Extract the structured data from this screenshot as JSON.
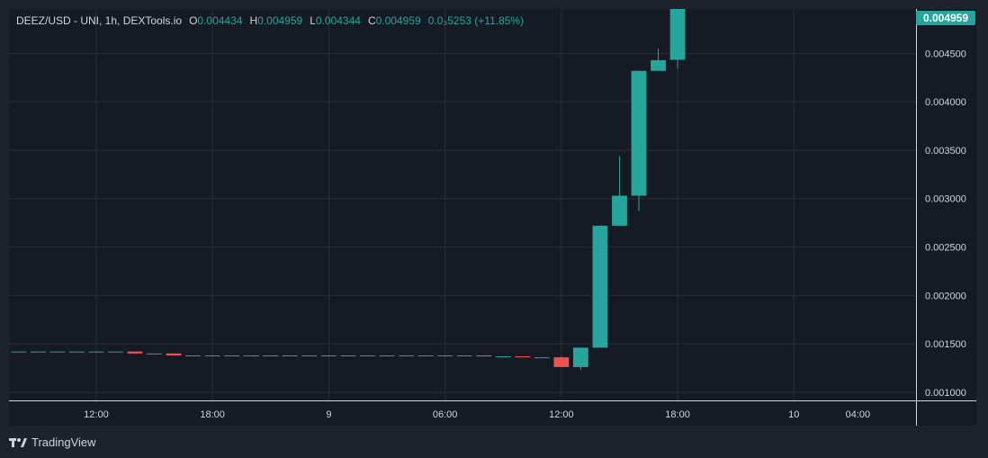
{
  "legend": {
    "symbol": "DEEZ/USD - UNI, 1h, DEXTools.io",
    "open_label": "O",
    "open": "0.004434",
    "high_label": "H",
    "high": "0.004959",
    "low_label": "L",
    "low": "0.004344",
    "close_label": "C",
    "close": "0.004959",
    "change": "0.0₃5253 (+11.85%)"
  },
  "last_price_label": "0.004959",
  "footer": {
    "brand": "TradingView"
  },
  "colors": {
    "up": "#26a69a",
    "down": "#ef5350",
    "background": "#161a25",
    "grid": "#2a2e39",
    "text": "#d1d4dc"
  },
  "chart_data": {
    "type": "candlestick",
    "y_axis": {
      "ticks": [
        0.0045,
        0.004,
        0.0035,
        0.003,
        0.0025,
        0.002,
        0.0015,
        0.001
      ],
      "tick_labels": [
        "0.004500",
        "0.004000",
        "0.003500",
        "0.003000",
        "0.002500",
        "0.002000",
        "0.001500",
        "0.001000"
      ],
      "range": [
        0.000915,
        0.004959
      ]
    },
    "x_axis": {
      "tick_labels": [
        "12:00",
        "18:00",
        "9",
        "06:00",
        "12:00",
        "18:00",
        "10",
        "04:00"
      ],
      "tick_positions": [
        4,
        10,
        16,
        22,
        28,
        34,
        40,
        43.3
      ]
    },
    "x_range": [
      -0.5,
      46.3
    ],
    "candles": [
      {
        "i": 0,
        "o": 0.00142,
        "h": 0.00142,
        "l": 0.00142,
        "c": 0.00142
      },
      {
        "i": 1,
        "o": 0.00142,
        "h": 0.00142,
        "l": 0.00142,
        "c": 0.00142
      },
      {
        "i": 2,
        "o": 0.00142,
        "h": 0.00142,
        "l": 0.00142,
        "c": 0.00142
      },
      {
        "i": 3,
        "o": 0.00142,
        "h": 0.00142,
        "l": 0.00142,
        "c": 0.00142
      },
      {
        "i": 4,
        "o": 0.00142,
        "h": 0.00142,
        "l": 0.00142,
        "c": 0.00142
      },
      {
        "i": 5,
        "o": 0.00142,
        "h": 0.00142,
        "l": 0.00142,
        "c": 0.00142
      },
      {
        "i": 6,
        "o": 0.00142,
        "h": 0.00142,
        "l": 0.0014,
        "c": 0.0014
      },
      {
        "i": 7,
        "o": 0.0014,
        "h": 0.0014,
        "l": 0.0014,
        "c": 0.0014
      },
      {
        "i": 8,
        "o": 0.0014,
        "h": 0.0014,
        "l": 0.00138,
        "c": 0.00138
      },
      {
        "i": 9,
        "o": 0.00138,
        "h": 0.00138,
        "l": 0.00138,
        "c": 0.00138
      },
      {
        "i": 10,
        "o": 0.00138,
        "h": 0.00138,
        "l": 0.00138,
        "c": 0.00138
      },
      {
        "i": 11,
        "o": 0.00138,
        "h": 0.00138,
        "l": 0.00138,
        "c": 0.00138
      },
      {
        "i": 12,
        "o": 0.00138,
        "h": 0.00138,
        "l": 0.00138,
        "c": 0.00138
      },
      {
        "i": 13,
        "o": 0.00138,
        "h": 0.00138,
        "l": 0.00138,
        "c": 0.00138
      },
      {
        "i": 14,
        "o": 0.00138,
        "h": 0.00138,
        "l": 0.00138,
        "c": 0.00138
      },
      {
        "i": 15,
        "o": 0.00138,
        "h": 0.00138,
        "l": 0.00138,
        "c": 0.00138
      },
      {
        "i": 16,
        "o": 0.00138,
        "h": 0.00138,
        "l": 0.00138,
        "c": 0.00138
      },
      {
        "i": 17,
        "o": 0.00138,
        "h": 0.00138,
        "l": 0.00138,
        "c": 0.00138
      },
      {
        "i": 18,
        "o": 0.00138,
        "h": 0.00138,
        "l": 0.00138,
        "c": 0.00138
      },
      {
        "i": 19,
        "o": 0.00138,
        "h": 0.00138,
        "l": 0.00138,
        "c": 0.00138
      },
      {
        "i": 20,
        "o": 0.00138,
        "h": 0.00138,
        "l": 0.00138,
        "c": 0.00138
      },
      {
        "i": 21,
        "o": 0.00138,
        "h": 0.00138,
        "l": 0.00138,
        "c": 0.00138
      },
      {
        "i": 22,
        "o": 0.00138,
        "h": 0.00138,
        "l": 0.00138,
        "c": 0.00138
      },
      {
        "i": 23,
        "o": 0.00138,
        "h": 0.00138,
        "l": 0.00138,
        "c": 0.00138
      },
      {
        "i": 24,
        "o": 0.00138,
        "h": 0.00138,
        "l": 0.00137,
        "c": 0.00137
      },
      {
        "i": 25,
        "o": 0.00137,
        "h": 0.00137,
        "l": 0.00137,
        "c": 0.00137
      },
      {
        "i": 26,
        "o": 0.00137,
        "h": 0.00137,
        "l": 0.00136,
        "c": 0.00136
      },
      {
        "i": 27,
        "o": 0.00136,
        "h": 0.00136,
        "l": 0.00136,
        "c": 0.00136
      },
      {
        "i": 28,
        "o": 0.00136,
        "h": 0.00137,
        "l": 0.00126,
        "c": 0.00126
      },
      {
        "i": 29,
        "o": 0.00126,
        "h": 0.00146,
        "l": 0.00123,
        "c": 0.00146
      },
      {
        "i": 30,
        "o": 0.00146,
        "h": 0.00272,
        "l": 0.00146,
        "c": 0.00272
      },
      {
        "i": 31,
        "o": 0.00272,
        "h": 0.00344,
        "l": 0.00272,
        "c": 0.00303
      },
      {
        "i": 32,
        "o": 0.00303,
        "h": 0.00432,
        "l": 0.00287,
        "c": 0.00432
      },
      {
        "i": 33,
        "o": 0.00432,
        "h": 0.00455,
        "l": 0.00432,
        "c": 0.00443
      },
      {
        "i": 34,
        "o": 0.004434,
        "h": 0.004959,
        "l": 0.004344,
        "c": 0.004959
      }
    ]
  }
}
